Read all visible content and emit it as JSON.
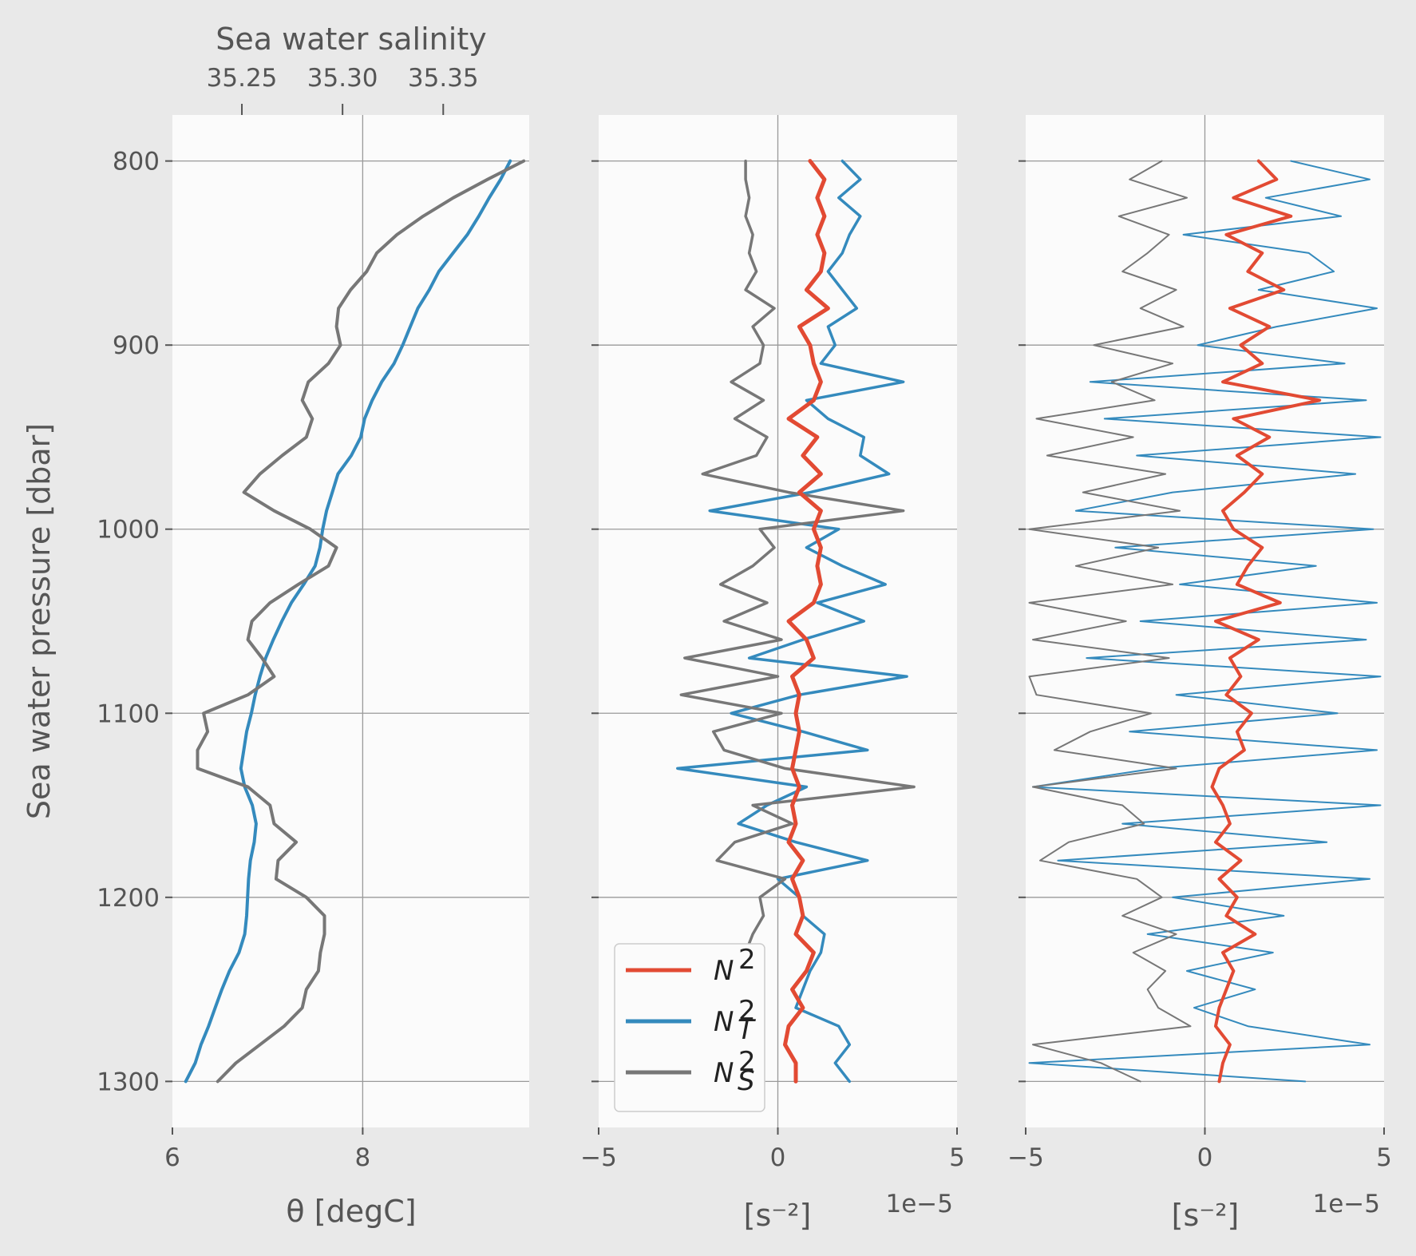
{
  "chart_data": [
    {
      "type": "line",
      "title": "",
      "xlabel": "θ [degC]",
      "ylabel": "Sea water pressure [dbar]",
      "x_ticks": [
        "6",
        "8"
      ],
      "xlim": [
        6,
        9.75
      ],
      "ylim": [
        1325,
        775
      ],
      "y_ticks": [
        "800",
        "900",
        "1000",
        "1100",
        "1200",
        "1300"
      ],
      "secondary_x": {
        "label": "Sea water salinity",
        "ticks": [
          "35.25",
          "35.30",
          "35.35"
        ],
        "tick_values": [
          35.25,
          35.3,
          35.35
        ],
        "range": [
          35.2155,
          35.3927
        ]
      },
      "grid": true,
      "series": [
        {
          "axis": "temperature",
          "color": "#348abd",
          "x": [
            9.55,
            9.45,
            9.33,
            9.22,
            9.1,
            8.95,
            8.8,
            8.7,
            8.58,
            8.5,
            8.42,
            8.33,
            8.2,
            8.1,
            8.02,
            7.98,
            7.88,
            7.74,
            7.68,
            7.62,
            7.58,
            7.55,
            7.5,
            7.38,
            7.25,
            7.15,
            7.06,
            6.98,
            6.92,
            6.87,
            6.83,
            6.78,
            6.75,
            6.72,
            6.76,
            6.84,
            6.88,
            6.86,
            6.82,
            6.8,
            6.79,
            6.78,
            6.76,
            6.7,
            6.6,
            6.52,
            6.45,
            6.38,
            6.3,
            6.24,
            6.14
          ],
          "y": [
            800,
            810,
            820,
            830,
            840,
            850,
            860,
            870,
            880,
            890,
            900,
            910,
            920,
            930,
            940,
            950,
            960,
            970,
            980,
            990,
            1000,
            1010,
            1020,
            1030,
            1040,
            1050,
            1060,
            1070,
            1080,
            1090,
            1100,
            1110,
            1120,
            1130,
            1140,
            1150,
            1160,
            1170,
            1180,
            1190,
            1200,
            1210,
            1220,
            1230,
            1240,
            1250,
            1260,
            1270,
            1280,
            1290,
            1300
          ]
        },
        {
          "axis": "salinity",
          "color": "#777777",
          "x": [
            35.39,
            35.372,
            35.355,
            35.34,
            35.327,
            35.317,
            35.312,
            35.304,
            35.298,
            35.297,
            35.299,
            35.293,
            35.283,
            35.28,
            35.285,
            35.282,
            35.27,
            35.259,
            35.251,
            35.266,
            35.284,
            35.297,
            35.293,
            35.278,
            35.264,
            35.255,
            35.253,
            35.26,
            35.266,
            35.253,
            35.231,
            35.233,
            35.228,
            35.228,
            35.253,
            35.264,
            35.266,
            35.277,
            35.268,
            35.267,
            35.282,
            35.291,
            35.291,
            35.289,
            35.288,
            35.282,
            35.28,
            35.271,
            35.259,
            35.247,
            35.238
          ],
          "y": [
            800,
            810,
            820,
            830,
            840,
            850,
            860,
            870,
            880,
            890,
            900,
            910,
            920,
            930,
            940,
            950,
            960,
            970,
            980,
            990,
            1000,
            1010,
            1020,
            1030,
            1040,
            1050,
            1060,
            1070,
            1080,
            1090,
            1100,
            1110,
            1120,
            1130,
            1140,
            1150,
            1160,
            1170,
            1180,
            1190,
            1200,
            1210,
            1220,
            1230,
            1240,
            1250,
            1260,
            1270,
            1280,
            1290,
            1300
          ]
        }
      ]
    },
    {
      "type": "line",
      "title": "",
      "xlabel": "[s⁻²]",
      "x_scale_label": "1e−5",
      "x_ticks": [
        "−5",
        "0",
        "5"
      ],
      "xlim": [
        -5,
        5
      ],
      "ylim": [
        1325,
        775
      ],
      "grid": true,
      "legend": {
        "placement": "lower left",
        "entries": [
          {
            "label": "N",
            "sup": "2",
            "sub": "",
            "color": "#e24a33"
          },
          {
            "label": "N",
            "sup": "2",
            "sub": "T",
            "color": "#348abd"
          },
          {
            "label": "N",
            "sup": "2",
            "sub": "S",
            "color": "#777777"
          }
        ]
      },
      "series": [
        {
          "name": "N²",
          "color": "#e24a33",
          "y": [
            800,
            810,
            820,
            830,
            840,
            850,
            860,
            870,
            880,
            890,
            900,
            910,
            920,
            930,
            940,
            950,
            960,
            970,
            980,
            990,
            1000,
            1010,
            1020,
            1030,
            1040,
            1050,
            1060,
            1070,
            1080,
            1090,
            1100,
            1110,
            1120,
            1130,
            1140,
            1150,
            1160,
            1170,
            1180,
            1190,
            1200,
            1210,
            1220,
            1230,
            1240,
            1250,
            1260,
            1270,
            1280,
            1290,
            1300
          ],
          "x": [
            0.9,
            1.3,
            1.1,
            1.3,
            1.1,
            1.3,
            1.2,
            0.8,
            1.4,
            0.6,
            0.9,
            1.0,
            1.2,
            1.0,
            0.3,
            1.1,
            0.7,
            1.2,
            0.6,
            1.2,
            1.0,
            1.2,
            1.1,
            1.2,
            1.0,
            0.3,
            0.8,
            1.0,
            0.4,
            0.6,
            0.5,
            0.6,
            0.5,
            0.4,
            0.6,
            0.4,
            0.5,
            0.3,
            0.7,
            0.4,
            0.6,
            0.7,
            0.5,
            1.0,
            0.8,
            0.4,
            0.7,
            0.3,
            0.2,
            0.5,
            0.5
          ]
        },
        {
          "name": "N_T²",
          "color": "#348abd",
          "y": [
            800,
            810,
            820,
            830,
            840,
            850,
            860,
            870,
            880,
            890,
            900,
            910,
            920,
            930,
            940,
            950,
            960,
            970,
            980,
            990,
            1000,
            1010,
            1020,
            1030,
            1040,
            1050,
            1060,
            1070,
            1080,
            1090,
            1100,
            1110,
            1120,
            1130,
            1140,
            1150,
            1160,
            1170,
            1180,
            1190,
            1200,
            1210,
            1220,
            1230,
            1240,
            1250,
            1260,
            1270,
            1280,
            1290,
            1300
          ],
          "x": [
            1.8,
            2.3,
            1.7,
            2.3,
            2.0,
            1.8,
            1.4,
            1.8,
            2.2,
            1.4,
            1.6,
            1.2,
            3.5,
            0.8,
            1.4,
            2.4,
            2.3,
            3.1,
            0.9,
            -1.9,
            1.7,
            0.8,
            1.8,
            3.0,
            1.1,
            2.4,
            0.7,
            -0.8,
            3.6,
            0.6,
            -1.3,
            0.7,
            2.5,
            -2.8,
            0.8,
            -0.3,
            -1.1,
            0.5,
            2.5,
            0.0,
            0.6,
            0.7,
            1.3,
            1.2,
            0.9,
            0.7,
            0.5,
            1.7,
            2.0,
            1.6,
            2.0
          ]
        },
        {
          "name": "N_S²",
          "color": "#777777",
          "y": [
            800,
            810,
            820,
            830,
            840,
            850,
            860,
            870,
            880,
            890,
            900,
            910,
            920,
            930,
            940,
            950,
            960,
            970,
            980,
            990,
            1000,
            1010,
            1020,
            1030,
            1040,
            1050,
            1060,
            1070,
            1080,
            1090,
            1100,
            1110,
            1120,
            1130,
            1140,
            1150,
            1160,
            1170,
            1180,
            1190,
            1200,
            1210,
            1220,
            1230,
            1240,
            1250,
            1260,
            1270,
            1280,
            1290,
            1300
          ],
          "x": [
            -0.9,
            -0.9,
            -0.8,
            -0.9,
            -0.7,
            -0.8,
            -0.6,
            -0.9,
            -0.1,
            -0.7,
            -0.4,
            -0.5,
            -1.3,
            -0.4,
            -1.2,
            -0.3,
            -0.6,
            -2.1,
            0.3,
            3.5,
            -0.5,
            -0.1,
            -0.7,
            -1.6,
            -0.3,
            -1.5,
            0.1,
            -2.6,
            0.0,
            -2.7,
            0.1,
            -1.8,
            -1.5,
            0.2,
            3.8,
            -0.7,
            0.4,
            -1.2,
            -1.7,
            0.2,
            -0.5,
            -0.4,
            -0.7,
            -0.9,
            -1.2,
            -1.0,
            -1.4,
            -1.5,
            -1.6,
            -1.4,
            -1.2
          ]
        }
      ]
    },
    {
      "type": "line",
      "title": "",
      "xlabel": "[s⁻²]",
      "x_scale_label": "1e−5",
      "x_ticks": [
        "−5",
        "0",
        "5"
      ],
      "xlim": [
        -5,
        5
      ],
      "ylim": [
        1325,
        775
      ],
      "grid": true,
      "series": [
        {
          "name": "N²",
          "color": "#e24a33",
          "y": [
            800,
            810,
            820,
            830,
            840,
            850,
            860,
            870,
            880,
            890,
            900,
            910,
            920,
            930,
            940,
            950,
            960,
            970,
            980,
            990,
            1000,
            1010,
            1020,
            1030,
            1040,
            1050,
            1060,
            1070,
            1080,
            1090,
            1100,
            1110,
            1120,
            1130,
            1140,
            1150,
            1160,
            1170,
            1180,
            1190,
            1200,
            1210,
            1220,
            1230,
            1240,
            1250,
            1260,
            1270,
            1280,
            1290,
            1300
          ],
          "x": [
            1.5,
            2.0,
            0.8,
            2.4,
            0.6,
            1.6,
            1.2,
            2.2,
            0.7,
            1.8,
            1.0,
            1.6,
            0.5,
            3.2,
            0.8,
            1.8,
            0.9,
            1.6,
            1.1,
            0.5,
            0.8,
            1.6,
            1.2,
            0.9,
            2.1,
            0.3,
            1.5,
            0.7,
            1.0,
            0.6,
            1.3,
            0.9,
            1.1,
            0.4,
            0.2,
            0.5,
            0.7,
            0.3,
            1.0,
            0.4,
            0.9,
            0.6,
            1.4,
            0.5,
            0.8,
            0.6,
            0.4,
            0.3,
            0.7,
            0.5,
            0.4
          ]
        },
        {
          "name": "N_T²",
          "color": "#348abd",
          "y": [
            800,
            810,
            820,
            830,
            840,
            850,
            860,
            870,
            880,
            890,
            900,
            910,
            920,
            930,
            940,
            950,
            960,
            970,
            980,
            990,
            1000,
            1010,
            1020,
            1030,
            1040,
            1050,
            1060,
            1070,
            1080,
            1090,
            1100,
            1110,
            1120,
            1130,
            1140,
            1150,
            1160,
            1170,
            1180,
            1190,
            1200,
            1210,
            1220,
            1230,
            1240,
            1250,
            1260,
            1270,
            1280,
            1290,
            1300
          ],
          "x": [
            2.4,
            4.6,
            1.7,
            3.8,
            -0.6,
            2.9,
            3.6,
            1.5,
            4.8,
            2.0,
            -0.2,
            3.9,
            -3.2,
            4.5,
            -2.8,
            4.9,
            -1.9,
            4.2,
            -0.9,
            -3.6,
            4.7,
            -2.5,
            3.1,
            -0.7,
            4.8,
            -1.8,
            4.5,
            -3.3,
            4.9,
            -0.8,
            3.7,
            -2.1,
            4.8,
            -1.4,
            -4.8,
            4.9,
            -2.3,
            3.4,
            -4.1,
            4.6,
            -0.9,
            2.2,
            -1.6,
            1.9,
            -0.5,
            1.4,
            -0.3,
            1.2,
            4.6,
            -4.9,
            2.8
          ]
        },
        {
          "name": "N_S²",
          "color": "#777777",
          "y": [
            800,
            810,
            820,
            830,
            840,
            850,
            860,
            870,
            880,
            890,
            900,
            910,
            920,
            930,
            940,
            950,
            960,
            970,
            980,
            990,
            1000,
            1010,
            1020,
            1030,
            1040,
            1050,
            1060,
            1070,
            1080,
            1090,
            1100,
            1110,
            1120,
            1130,
            1140,
            1150,
            1160,
            1170,
            1180,
            1190,
            1200,
            1210,
            1220,
            1230,
            1240,
            1250,
            1260,
            1270,
            1280,
            1290,
            1300
          ],
          "x": [
            -1.2,
            -2.1,
            -0.5,
            -2.4,
            -1.0,
            -1.6,
            -2.3,
            -0.8,
            -1.8,
            -0.6,
            -3.1,
            -0.9,
            -2.6,
            -1.4,
            -4.7,
            -2.0,
            -4.4,
            -1.1,
            -3.4,
            -0.7,
            -4.9,
            -1.3,
            -3.6,
            -0.9,
            -4.9,
            -2.2,
            -4.8,
            -1.0,
            -4.9,
            -4.7,
            -1.5,
            -3.2,
            -4.2,
            -0.8,
            -4.8,
            -2.3,
            -1.7,
            -3.8,
            -4.6,
            -1.9,
            -1.2,
            -2.3,
            -0.8,
            -2.0,
            -1.1,
            -1.6,
            -1.3,
            -0.4,
            -4.8,
            -2.9,
            -1.8
          ]
        }
      ]
    }
  ]
}
